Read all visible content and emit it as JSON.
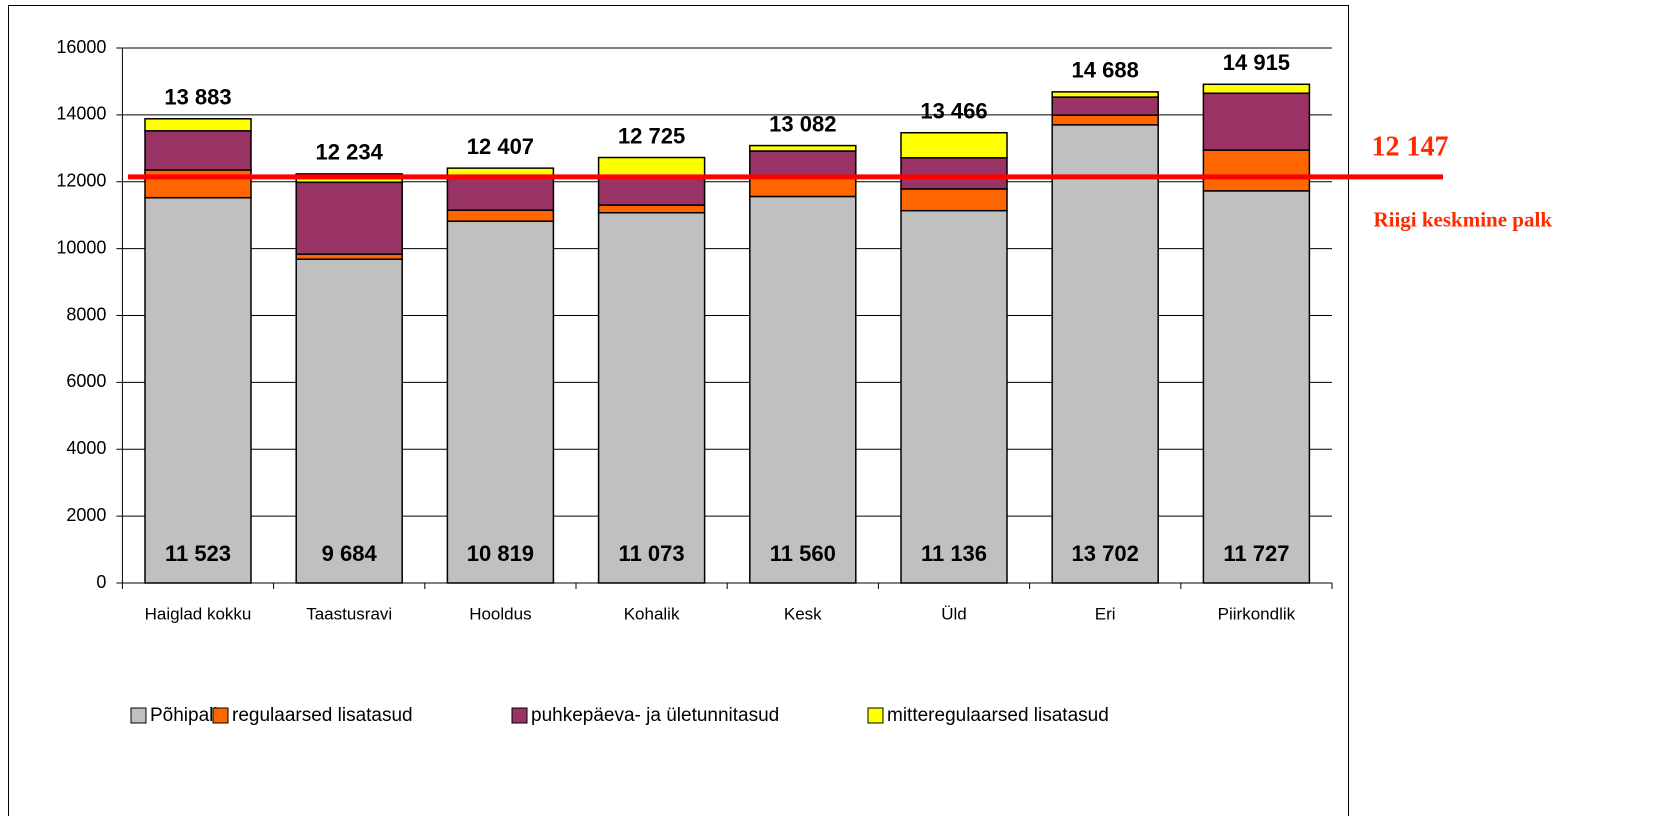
{
  "chart_data": {
    "type": "stacked_bar",
    "categories": [
      "Haiglad kokku",
      "Taastusravi",
      "Hooldus",
      "Kohalik",
      "Kesk",
      "Üld",
      "Eri",
      "Piirkondlik"
    ],
    "series": [
      {
        "name": "Põhipalk",
        "color": "#c0c0c0",
        "values": [
          11523,
          9684,
          10819,
          11073,
          11560,
          11136,
          13702,
          11727
        ],
        "value_labels": [
          "11 523",
          "9 684",
          "10 819",
          "11 073",
          "11 560",
          "11 136",
          "13 702",
          "11 727"
        ]
      },
      {
        "name": "regulaarsed lisatasud",
        "color": "#ff6600",
        "values": [
          830,
          150,
          330,
          230,
          610,
          650,
          290,
          1220
        ]
      },
      {
        "name": "puhkepäeva- ja ületunnitasud",
        "color": "#993366",
        "values": [
          1170,
          2150,
          960,
          870,
          750,
          930,
          540,
          1700
        ]
      },
      {
        "name": "mitteregulaarsed lisatasud",
        "color": "#ffff00",
        "values": [
          360,
          250,
          298,
          552,
          162,
          750,
          156,
          268
        ]
      }
    ],
    "totals": [
      13883,
      12234,
      12407,
      12725,
      13082,
      13466,
      14688,
      14915
    ],
    "total_labels": [
      "13 883",
      "12 234",
      "12 407",
      "12 725",
      "13 082",
      "13 466",
      "14 688",
      "14 915"
    ],
    "reference_line": {
      "value": 12147,
      "label": "12 147",
      "text": "Riigi keskmine palk",
      "color": "#ff0000"
    },
    "ylim": [
      0,
      16000
    ],
    "yticks": [
      0,
      2000,
      4000,
      6000,
      8000,
      10000,
      12000,
      14000,
      16000
    ],
    "grid": true,
    "legend": "bottom"
  }
}
